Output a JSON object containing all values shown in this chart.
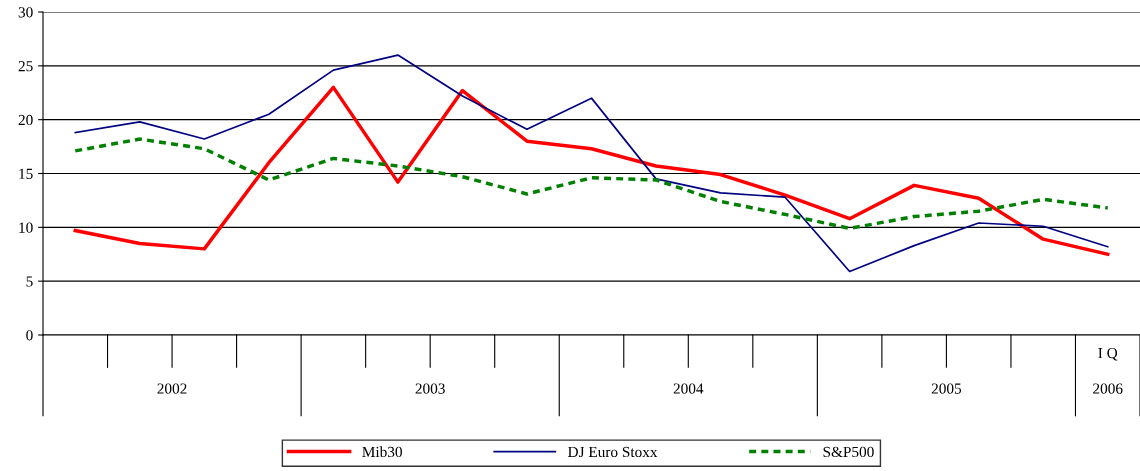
{
  "chart_data": {
    "type": "line",
    "categories": [
      null,
      null,
      null,
      null,
      null,
      null,
      null,
      null,
      null,
      null,
      null,
      null,
      null,
      null,
      null,
      null,
      "I Q"
    ],
    "series": [
      {
        "name": "Mib30",
        "color": "#ff0000",
        "line_style": "solid",
        "values": [
          9.7,
          8.5,
          8.0,
          16,
          23,
          14.2,
          22.7,
          18,
          17.3,
          15.7,
          14.9,
          13,
          10.8,
          13.9,
          12.7,
          8.9,
          7.5
        ]
      },
      {
        "name": "DJ Euro Stoxx",
        "color": "#000080",
        "line_style": "solid",
        "values": [
          18.8,
          19.8,
          18.2,
          20.5,
          24.6,
          26,
          22.2,
          19.1,
          22,
          14.5,
          13.2,
          12.8,
          5.9,
          8.3,
          10.4,
          10.1,
          8.2
        ]
      },
      {
        "name": "S&P500",
        "color": "#008000",
        "line_style": "dashed",
        "values": [
          17.1,
          18.2,
          17.3,
          14.4,
          16.4,
          15.7,
          14.7,
          13.1,
          14.6,
          14.4,
          12.4,
          11.2,
          9.9,
          11.0,
          11.5,
          12.6,
          11.8
        ]
      }
    ],
    "annotations": [
      "2002",
      "2003",
      "2004",
      "2005",
      "2006"
    ],
    "ylim": [
      0,
      30
    ],
    "yticks": [
      0,
      5,
      10,
      15,
      20,
      25,
      30
    ],
    "grid": "y",
    "legend": "bottom",
    "marker": "none"
  }
}
